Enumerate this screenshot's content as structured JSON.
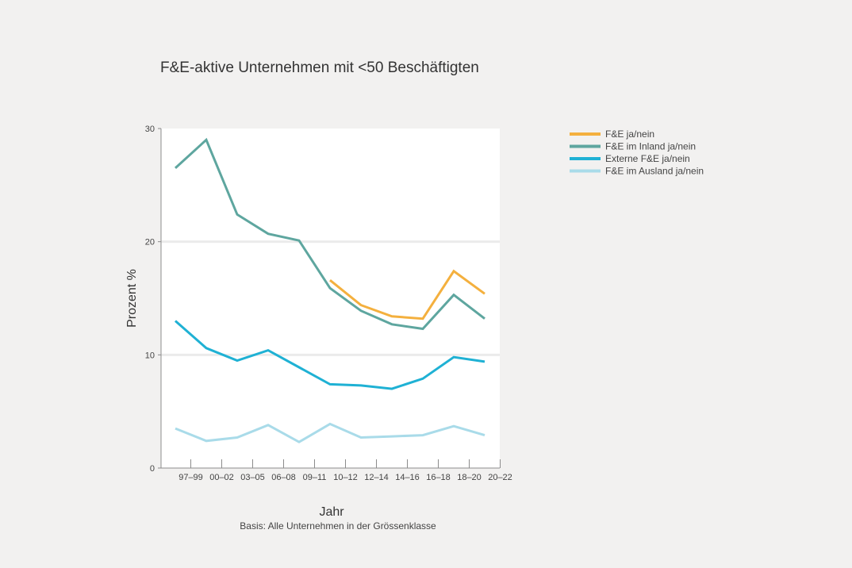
{
  "chart_data": {
    "type": "line",
    "title": "F&E-aktive Unternehmen mit <50 Beschäftigten",
    "xlabel": "Jahr",
    "ylabel": "Prozent %",
    "note": "Basis: Alle Unternehmen in der Grössenklasse",
    "categories": [
      "97–99",
      "00–02",
      "03–05",
      "06–08",
      "09–11",
      "10–12",
      "12–14",
      "14–16",
      "16–18",
      "18–20",
      "20–22"
    ],
    "ylim": [
      0,
      30
    ],
    "yticks": [
      0,
      10,
      20,
      30
    ],
    "grid": true,
    "legend_position": "top-right",
    "series": [
      {
        "name": "F&E ja/nein",
        "color": "#f4b03e",
        "values": [
          null,
          null,
          null,
          null,
          null,
          16.6,
          14.4,
          13.4,
          13.2,
          17.4,
          15.4
        ]
      },
      {
        "name": "F&E im Inland ja/nein",
        "color": "#5ea69f",
        "values": [
          26.5,
          29.0,
          22.4,
          20.7,
          20.1,
          15.9,
          13.9,
          12.7,
          12.3,
          15.3,
          13.2
        ]
      },
      {
        "name": "Externe F&E ja/nein",
        "color": "#1fb1d4",
        "values": [
          13.0,
          10.6,
          9.5,
          10.4,
          8.9,
          7.4,
          7.3,
          7.0,
          7.9,
          9.8,
          9.4
        ]
      },
      {
        "name": "F&E im Ausland ja/nein",
        "color": "#a9dbe9",
        "values": [
          3.5,
          2.4,
          2.7,
          3.8,
          2.3,
          3.9,
          2.7,
          2.8,
          2.9,
          3.7,
          2.9
        ]
      }
    ]
  }
}
